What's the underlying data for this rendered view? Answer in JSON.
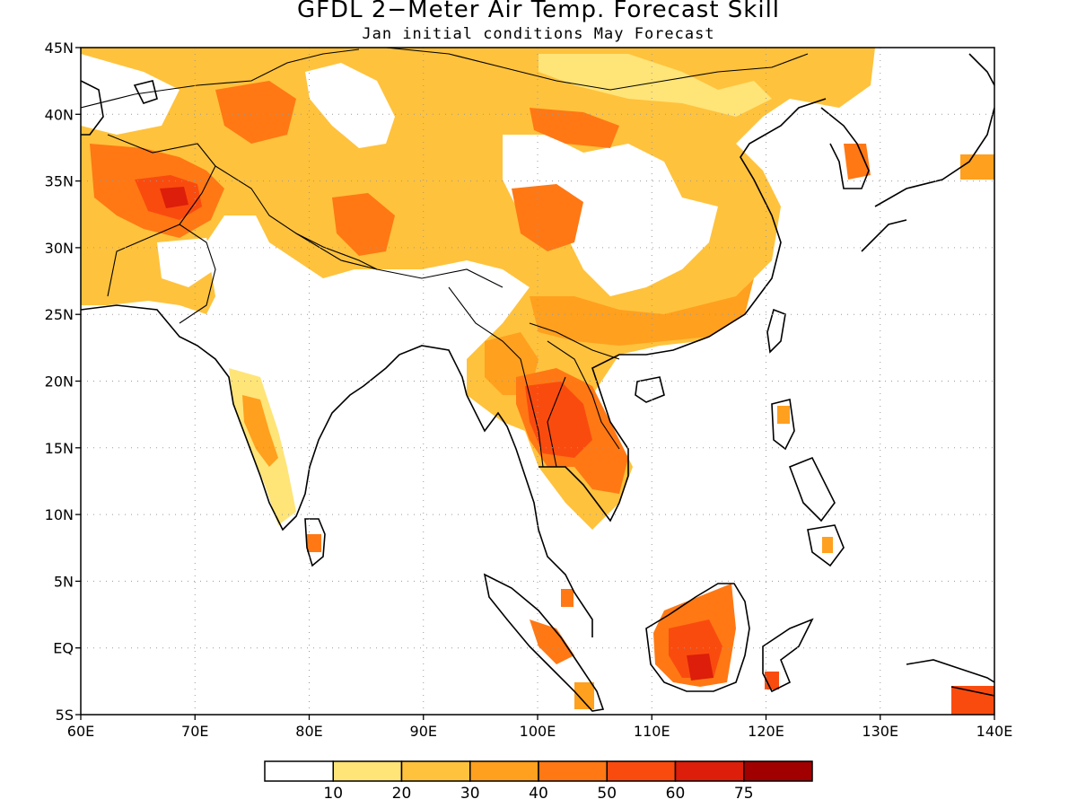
{
  "title": "GFDL 2−Meter Air Temp. Forecast Skill",
  "subtitle": "Jan initial conditions  May Forecast",
  "map": {
    "lon_range": [
      60,
      140
    ],
    "lat_range": [
      -5,
      45
    ],
    "x_ticks": [
      "60E",
      "70E",
      "80E",
      "90E",
      "100E",
      "110E",
      "120E",
      "130E",
      "140E"
    ],
    "y_ticks": [
      "45N",
      "40N",
      "35N",
      "30N",
      "25N",
      "20N",
      "15N",
      "10N",
      "5N",
      "EQ",
      "5S"
    ],
    "grid_lines": "dotted",
    "coastlines": true
  },
  "colorbar": {
    "levels": [
      "10",
      "20",
      "30",
      "40",
      "50",
      "60",
      "75"
    ],
    "colors": [
      "#ffffff",
      "#ffe478",
      "#ffc23c",
      "#ffa01e",
      "#ff7814",
      "#fa4b0f",
      "#dc1e0a",
      "#a00000"
    ]
  },
  "skill_regions": [
    {
      "name": "central-asia",
      "level": 3
    },
    {
      "name": "afghanistan-pakistan",
      "level": 5
    },
    {
      "name": "tibet",
      "level": 4
    },
    {
      "name": "mongolia-north-china",
      "level": 3
    },
    {
      "name": "sichuan",
      "level": 5
    },
    {
      "name": "south-china",
      "level": 4
    },
    {
      "name": "indochina",
      "level": 6
    },
    {
      "name": "india-west-coast",
      "level": 3
    },
    {
      "name": "borneo",
      "level": 6
    },
    {
      "name": "korea",
      "level": 5
    }
  ]
}
